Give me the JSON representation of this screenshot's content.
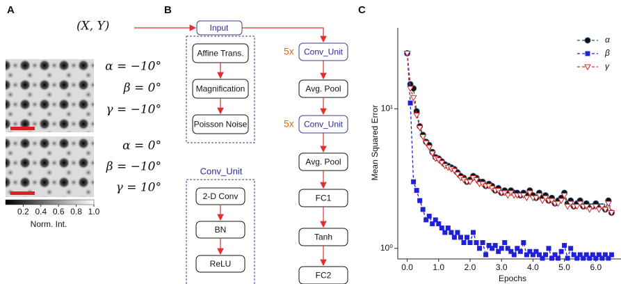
{
  "panel_a": {
    "label": "A",
    "input": "(X, Y)",
    "image_1": [
      "α = −10°",
      "β = 0°",
      "γ = −10°"
    ],
    "image_2": [
      "α = 0°",
      "β = −10°",
      "γ = 10°"
    ],
    "colorbar_ticks": [
      "0.2",
      "0.4",
      "0.6",
      "0.8",
      "1.0"
    ],
    "colorbar_label": "Norm. Int."
  },
  "panel_b": {
    "label": "B",
    "input": "Input",
    "augmentation": [
      "Affine Trans.",
      "Magnification",
      "Poisson Noise"
    ],
    "conv_unit_title": "Conv_Unit",
    "conv_unit": [
      "2-D Conv",
      "BN",
      "ReLU"
    ],
    "network": [
      "Conv_Unit",
      "Avg. Pool",
      "Conv_Unit",
      "Avg. Pool",
      "FC1",
      "Tanh",
      "FC2"
    ],
    "repeat": [
      "5x",
      "5x"
    ]
  },
  "chart_data": {
    "type": "line",
    "panel_label": "C",
    "xlabel": "Epochs",
    "ylabel": "Mean Squared Error",
    "log_y": true,
    "legend": "upper right",
    "xlim": [
      -0.3,
      6.8
    ],
    "ylim": [
      0.84,
      38
    ],
    "xticks": [
      {
        "value": 0,
        "label": "0.0"
      },
      {
        "value": 1,
        "label": "1.0"
      },
      {
        "value": 2,
        "label": "2.0"
      },
      {
        "value": 3,
        "label": "3.0"
      },
      {
        "value": 4,
        "label": "4.0"
      },
      {
        "value": 5,
        "label": "5.0"
      },
      {
        "value": 6,
        "label": "6.0"
      }
    ],
    "yticks": [
      {
        "value": 1,
        "label": "10⁰"
      },
      {
        "value": 10,
        "label": "10¹"
      }
    ],
    "x": [
      0,
      0.1,
      0.2,
      0.3,
      0.4,
      0.5,
      0.6,
      0.7,
      0.8,
      0.9,
      1,
      1.1,
      1.2,
      1.3,
      1.4,
      1.5,
      1.6,
      1.7,
      1.8,
      1.9,
      2,
      2.1,
      2.2,
      2.3,
      2.4,
      2.5,
      2.6,
      2.7,
      2.8,
      2.9,
      3,
      3.1,
      3.2,
      3.3,
      3.4,
      3.5,
      3.6,
      3.7,
      3.8,
      3.9,
      4,
      4.1,
      4.2,
      4.3,
      4.4,
      4.5,
      4.6,
      4.7,
      4.8,
      4.9,
      5,
      5.1,
      5.2,
      5.3,
      5.4,
      5.5,
      5.6,
      5.7,
      5.8,
      5.9,
      6,
      6.1,
      6.2,
      6.3,
      6.4,
      6.5
    ],
    "series": [
      {
        "name": "α",
        "color": "#1f4e79",
        "marker": "circle",
        "values": [
          25,
          15,
          14,
          9.6,
          7.5,
          6.5,
          5.8,
          5.5,
          4.9,
          4.5,
          4.4,
          4.2,
          4,
          3.9,
          3.8,
          3.7,
          3.5,
          3.3,
          3.2,
          3,
          3.1,
          3.3,
          3.2,
          3,
          3,
          2.8,
          2.9,
          2.8,
          2.6,
          2.7,
          2.5,
          2.6,
          2.5,
          2.6,
          2.5,
          2.5,
          2.4,
          2.5,
          2.4,
          2.6,
          2.4,
          2.3,
          2.5,
          2.3,
          2.4,
          2.2,
          2.3,
          2.1,
          2.2,
          2.3,
          2.5,
          2.1,
          2.2,
          2,
          2.1,
          2.2,
          2,
          2.1,
          2,
          2,
          2.1,
          2,
          2,
          1.9,
          2.2,
          1.8
        ]
      },
      {
        "name": "β",
        "color": "#1f1fdc",
        "marker": "square",
        "values": [
          25,
          11,
          3,
          2.6,
          2.2,
          1.9,
          1.6,
          1.7,
          1.5,
          1.6,
          1.5,
          1.4,
          1.3,
          1.4,
          1.3,
          1.2,
          1.3,
          1.2,
          1.1,
          1.2,
          1.1,
          1.3,
          1.1,
          1,
          1.1,
          0.9,
          1.05,
          1,
          1.05,
          0.95,
          1,
          1.1,
          1,
          0.95,
          0.9,
          1,
          0.95,
          1.1,
          0.9,
          0.95,
          0.9,
          0.95,
          0.9,
          0.85,
          0.9,
          1,
          0.85,
          0.9,
          0.85,
          0.95,
          1.05,
          0.85,
          1,
          0.9,
          0.85,
          0.9,
          0.85,
          0.9,
          0.85,
          0.9,
          0.85,
          0.9,
          0.85,
          0.9,
          0.85,
          0.9
        ]
      },
      {
        "name": "γ",
        "color": "#d62728",
        "marker": "triangle",
        "values": [
          25,
          14,
          12,
          9,
          7.3,
          6.3,
          5.7,
          5.3,
          4.8,
          4.4,
          4.3,
          4.1,
          3.9,
          3.8,
          3.7,
          3.6,
          3.4,
          3.2,
          3.1,
          3,
          3,
          3.2,
          3.1,
          2.9,
          2.9,
          2.8,
          2.8,
          2.7,
          2.6,
          2.6,
          2.5,
          2.5,
          2.4,
          2.5,
          2.4,
          2.4,
          2.4,
          2.4,
          2.3,
          2.5,
          2.3,
          2.3,
          2.4,
          2.2,
          2.3,
          2.2,
          2.2,
          2.1,
          2.1,
          2.2,
          2.4,
          2,
          2.1,
          2,
          2,
          2.1,
          2,
          2,
          1.9,
          2,
          2,
          1.9,
          2,
          1.9,
          2.1,
          1.8
        ]
      }
    ]
  }
}
